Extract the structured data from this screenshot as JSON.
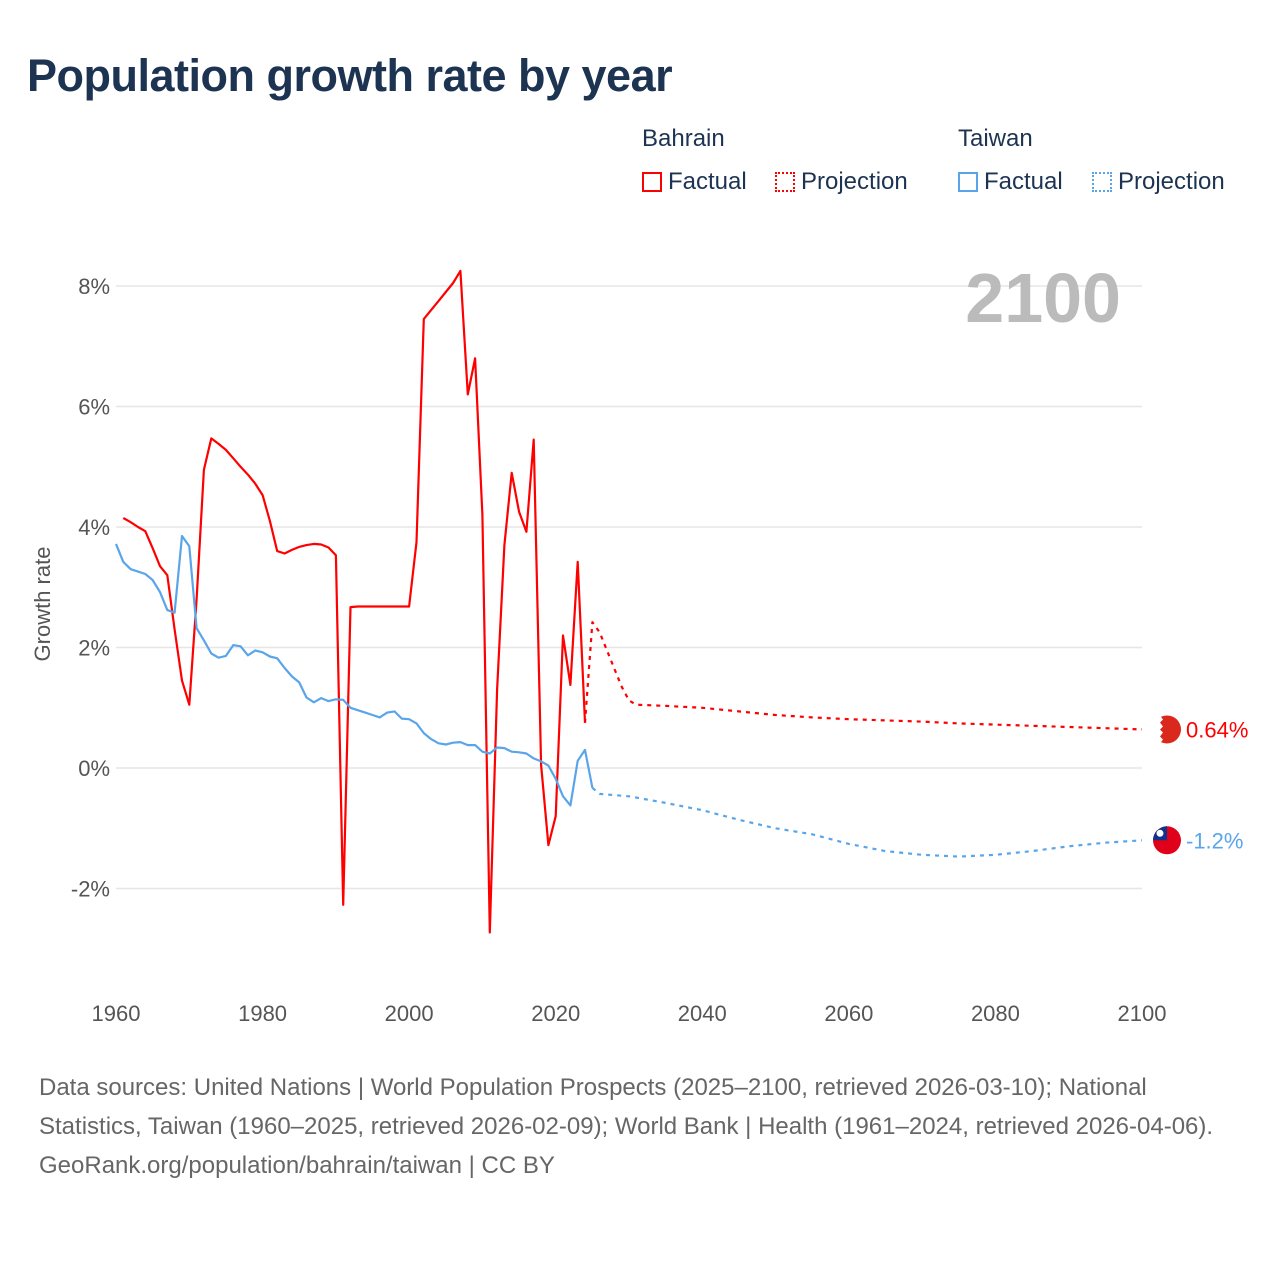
{
  "title": "Population growth rate by year",
  "legend": {
    "groups": [
      {
        "name": "Bahrain",
        "color": "#ff0000",
        "factual": "Factual",
        "projection": "Projection"
      },
      {
        "name": "Taiwan",
        "color": "#5aa5ea",
        "factual": "Factual",
        "projection": "Projection"
      }
    ]
  },
  "year_display": "2100",
  "footer": {
    "sources": "Data sources: United Nations | World Population Prospects (2025–2100, retrieved 2026-03-10); National Statistics, Taiwan (1960–2025, retrieved 2026-02-09); World Bank | Health (1961–2024, retrieved 2026-04-06).",
    "credit": "GeoRank.org/population/bahrain/taiwan | CC BY"
  },
  "chart_data": {
    "type": "line",
    "title": "Population growth rate by year",
    "ylabel": "Growth rate",
    "xlabel": "",
    "xlim": [
      1960,
      2100
    ],
    "ylim": [
      -3,
      8.6
    ],
    "x_ticks": [
      "1960",
      "1980",
      "2000",
      "2020",
      "2040",
      "2060",
      "2080",
      "2100"
    ],
    "y_ticks": [
      {
        "v": 8,
        "label": "8%"
      },
      {
        "v": 6,
        "label": "6%"
      },
      {
        "v": 4,
        "label": "4%"
      },
      {
        "v": 2,
        "label": "2%"
      },
      {
        "v": 0,
        "label": "0%"
      },
      {
        "v": -2,
        "label": "-2%"
      }
    ],
    "grid": true,
    "series": [
      {
        "name": "Bahrain Factual",
        "color": "#ff0000",
        "dashed": false,
        "x": [
          1961,
          1962,
          1963,
          1964,
          1965,
          1966,
          1967,
          1968,
          1969,
          1970,
          1971,
          1972,
          1973,
          1974,
          1975,
          1976,
          1977,
          1978,
          1979,
          1980,
          1981,
          1982,
          1983,
          1984,
          1985,
          1986,
          1987,
          1988,
          1989,
          1990,
          1991,
          1992,
          1993,
          1994,
          1995,
          1996,
          1997,
          1998,
          1999,
          2000,
          2001,
          2002,
          2003,
          2004,
          2005,
          2006,
          2007,
          2008,
          2009,
          2010,
          2011,
          2012,
          2013,
          2014,
          2015,
          2016,
          2017,
          2018,
          2019,
          2020,
          2021,
          2022,
          2023,
          2024
        ],
        "y": [
          4.15,
          4.08,
          4.0,
          3.93,
          3.65,
          3.35,
          3.2,
          2.3,
          1.45,
          1.05,
          2.8,
          4.95,
          5.47,
          5.38,
          5.28,
          5.14,
          5.0,
          4.87,
          4.72,
          4.53,
          4.1,
          3.6,
          3.56,
          3.62,
          3.67,
          3.7,
          3.72,
          3.71,
          3.66,
          3.53,
          -2.27,
          2.67,
          2.68,
          2.68,
          2.68,
          2.68,
          2.68,
          2.68,
          2.68,
          2.68,
          3.75,
          7.45,
          7.6,
          7.75,
          7.9,
          8.05,
          8.25,
          6.2,
          6.8,
          4.2,
          -2.73,
          1.3,
          3.7,
          4.9,
          4.25,
          3.92,
          5.45,
          0.05,
          -1.28,
          -0.8,
          2.2,
          1.38,
          3.42,
          0.75
        ]
      },
      {
        "name": "Bahrain Projection",
        "color": "#ff0000",
        "dashed": true,
        "x": [
          2024,
          2025,
          2026,
          2027,
          2028,
          2029,
          2030,
          2031,
          2035,
          2040,
          2045,
          2050,
          2055,
          2060,
          2065,
          2070,
          2075,
          2080,
          2085,
          2090,
          2095,
          2100
        ],
        "y": [
          0.75,
          2.42,
          2.25,
          1.95,
          1.65,
          1.35,
          1.12,
          1.05,
          1.03,
          1.0,
          0.94,
          0.88,
          0.84,
          0.81,
          0.79,
          0.77,
          0.74,
          0.72,
          0.7,
          0.68,
          0.66,
          0.64
        ]
      },
      {
        "name": "Taiwan Factual",
        "color": "#5aa5ea",
        "dashed": false,
        "x": [
          1960,
          1961,
          1962,
          1963,
          1964,
          1965,
          1966,
          1967,
          1968,
          1969,
          1970,
          1971,
          1972,
          1973,
          1974,
          1975,
          1976,
          1977,
          1978,
          1979,
          1980,
          1981,
          1982,
          1983,
          1984,
          1985,
          1986,
          1987,
          1988,
          1989,
          1990,
          1991,
          1992,
          1993,
          1994,
          1995,
          1996,
          1997,
          1998,
          1999,
          2000,
          2001,
          2002,
          2003,
          2004,
          2005,
          2006,
          2007,
          2008,
          2009,
          2010,
          2011,
          2012,
          2013,
          2014,
          2015,
          2016,
          2017,
          2018,
          2019,
          2020,
          2021,
          2022,
          2023,
          2024,
          2025
        ],
        "y": [
          3.72,
          3.42,
          3.3,
          3.26,
          3.22,
          3.12,
          2.92,
          2.62,
          2.58,
          3.85,
          3.68,
          2.32,
          2.12,
          1.9,
          1.83,
          1.86,
          2.04,
          2.02,
          1.87,
          1.95,
          1.92,
          1.85,
          1.82,
          1.66,
          1.52,
          1.42,
          1.17,
          1.09,
          1.16,
          1.11,
          1.14,
          1.13,
          1.0,
          0.96,
          0.92,
          0.88,
          0.84,
          0.92,
          0.94,
          0.82,
          0.81,
          0.74,
          0.58,
          0.48,
          0.41,
          0.39,
          0.42,
          0.43,
          0.38,
          0.38,
          0.27,
          0.24,
          0.34,
          0.33,
          0.27,
          0.26,
          0.24,
          0.16,
          0.11,
          0.04,
          -0.18,
          -0.47,
          -0.62,
          0.12,
          0.3,
          -0.33
        ]
      },
      {
        "name": "Taiwan Projection",
        "color": "#5aa5ea",
        "dashed": true,
        "x": [
          2025,
          2026,
          2030,
          2035,
          2040,
          2045,
          2050,
          2055,
          2060,
          2065,
          2070,
          2075,
          2080,
          2085,
          2090,
          2095,
          2100
        ],
        "y": [
          -0.33,
          -0.43,
          -0.47,
          -0.58,
          -0.7,
          -0.86,
          -1.0,
          -1.1,
          -1.26,
          -1.38,
          -1.44,
          -1.47,
          -1.44,
          -1.38,
          -1.3,
          -1.24,
          -1.2
        ]
      }
    ],
    "end_labels": [
      {
        "country": "Bahrain",
        "value": 0.64,
        "label": "0.64%",
        "color": "#ff0000"
      },
      {
        "country": "Taiwan",
        "value": -1.2,
        "label": "-1.2%",
        "color": "#5aa5ea"
      }
    ]
  }
}
